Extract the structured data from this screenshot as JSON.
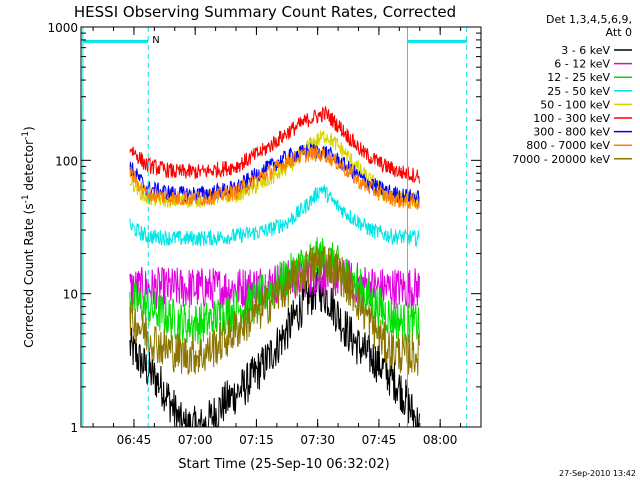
{
  "chart_data": {
    "type": "line",
    "title": "HESSI Observing Summary Count Rates, Corrected",
    "xlabel": "Start Time (25-Sep-10 06:32:02)",
    "ylabel": "Corrected Count Rate (s",
    "ylabel_sup1": "-1",
    "ylabel_mid": " detector",
    "ylabel_sup2": "-1",
    "ylabel_end": ")",
    "y_scale": "log",
    "ylim": [
      1,
      1000
    ],
    "xlim": [
      "06:32:02",
      "08:10:00"
    ],
    "x_ticks": [
      "06:45",
      "07:00",
      "07:15",
      "07:30",
      "07:45",
      "08:00"
    ],
    "y_ticks": [
      "1",
      "10",
      "100",
      "1000"
    ],
    "grid": false,
    "legend_header": [
      "Det 1,3,4,5,6,9,",
      "Att 0"
    ],
    "legend_position": "outside-right",
    "footer_date": "27-Sep-2010 13:42",
    "annotations": [
      {
        "text": "N",
        "x": "06:48"
      }
    ],
    "night_markers": {
      "vertical_lines": [
        "06:32:30",
        "06:48:30",
        "07:52:00",
        "08:06:30"
      ],
      "horizontal_bars": [
        {
          "from": "06:32:30",
          "to": "06:48:30",
          "y": 780
        },
        {
          "from": "07:52:00",
          "to": "08:06:30",
          "y": 780
        }
      ],
      "color": "#00e5e5"
    },
    "data_start": "06:44",
    "data_end": "07:55",
    "series": [
      {
        "name": "3 - 6 keV",
        "color": "#000000",
        "x": [
          "06:44",
          "06:47",
          "06:52",
          "06:57",
          "07:02",
          "07:07",
          "07:12",
          "07:17",
          "07:22",
          "07:26",
          "07:30",
          "07:33",
          "07:36",
          "07:40",
          "07:45",
          "07:50",
          "07:55"
        ],
        "y": [
          4,
          3,
          2,
          1,
          1,
          1.5,
          2,
          3,
          5,
          8,
          11,
          9,
          6,
          4,
          3,
          2,
          1
        ]
      },
      {
        "name": "6 - 12 keV",
        "color": "#e000e0",
        "x": [
          "06:44",
          "06:50",
          "07:00",
          "07:10",
          "07:20",
          "07:25",
          "07:30",
          "07:35",
          "07:40",
          "07:45",
          "07:50",
          "07:55"
        ],
        "y": [
          11,
          11,
          11,
          11,
          12,
          13,
          14,
          13,
          12,
          11,
          11,
          11
        ]
      },
      {
        "name": "12 - 25 keV",
        "color": "#00e000",
        "x": [
          "06:44",
          "06:48",
          "06:52",
          "06:57",
          "07:02",
          "07:07",
          "07:12",
          "07:17",
          "07:22",
          "07:27",
          "07:31",
          "07:35",
          "07:39",
          "07:43",
          "07:47",
          "07:51",
          "07:55"
        ],
        "y": [
          9,
          8,
          7,
          6,
          6,
          7,
          8,
          10,
          13,
          17,
          19,
          16,
          12,
          9,
          7,
          6,
          6
        ]
      },
      {
        "name": "25 - 50 keV",
        "color": "#00e5e5",
        "x": [
          "06:44",
          "06:48",
          "06:55",
          "07:02",
          "07:10",
          "07:18",
          "07:23",
          "07:27",
          "07:31",
          "07:34",
          "07:38",
          "07:43",
          "07:48",
          "07:55"
        ],
        "y": [
          32,
          27,
          26,
          26,
          27,
          30,
          35,
          45,
          62,
          48,
          38,
          30,
          27,
          26
        ]
      },
      {
        "name": "50 - 100 keV",
        "color": "#d4d400",
        "x": [
          "06:44",
          "06:48",
          "06:55",
          "07:02",
          "07:10",
          "07:17",
          "07:23",
          "07:28",
          "07:32",
          "07:36",
          "07:41",
          "07:46",
          "07:50",
          "07:55"
        ],
        "y": [
          72,
          52,
          50,
          51,
          55,
          68,
          90,
          130,
          155,
          120,
          80,
          58,
          52,
          50
        ]
      },
      {
        "name": "100 - 300 keV",
        "color": "#ff0000",
        "x": [
          "06:44",
          "06:48",
          "06:55",
          "07:02",
          "07:10",
          "07:17",
          "07:23",
          "07:28",
          "07:32",
          "07:36",
          "07:41",
          "07:46",
          "07:50",
          "07:55"
        ],
        "y": [
          125,
          92,
          82,
          82,
          90,
          120,
          165,
          205,
          225,
          170,
          115,
          92,
          82,
          76
        ]
      },
      {
        "name": "300 - 800 keV",
        "color": "#0000ff",
        "x": [
          "06:44",
          "06:48",
          "06:55",
          "07:02",
          "07:10",
          "07:17",
          "07:23",
          "07:28",
          "07:32",
          "07:36",
          "07:41",
          "07:46",
          "07:50",
          "07:55"
        ],
        "y": [
          90,
          62,
          56,
          56,
          62,
          85,
          108,
          118,
          115,
          95,
          72,
          60,
          55,
          52
        ]
      },
      {
        "name": "800 - 7000 keV",
        "color": "#ff8000",
        "x": [
          "06:44",
          "06:48",
          "06:55",
          "07:02",
          "07:10",
          "07:17",
          "07:23",
          "07:28",
          "07:32",
          "07:36",
          "07:41",
          "07:46",
          "07:50",
          "07:55"
        ],
        "y": [
          82,
          56,
          52,
          52,
          58,
          78,
          100,
          112,
          110,
          90,
          66,
          55,
          50,
          48
        ]
      },
      {
        "name": "7000 - 20000 keV",
        "color": "#8b7500",
        "x": [
          "06:44",
          "06:48",
          "06:52",
          "06:57",
          "07:02",
          "07:07",
          "07:12",
          "07:17",
          "07:22",
          "07:27",
          "07:31",
          "07:35",
          "07:39",
          "07:43",
          "07:47",
          "07:51",
          "07:55"
        ],
        "y": [
          7,
          5,
          4,
          3.5,
          3.5,
          4.5,
          6,
          8,
          11,
          15,
          18,
          15,
          10,
          6,
          4,
          3.5,
          3.5
        ]
      }
    ]
  }
}
